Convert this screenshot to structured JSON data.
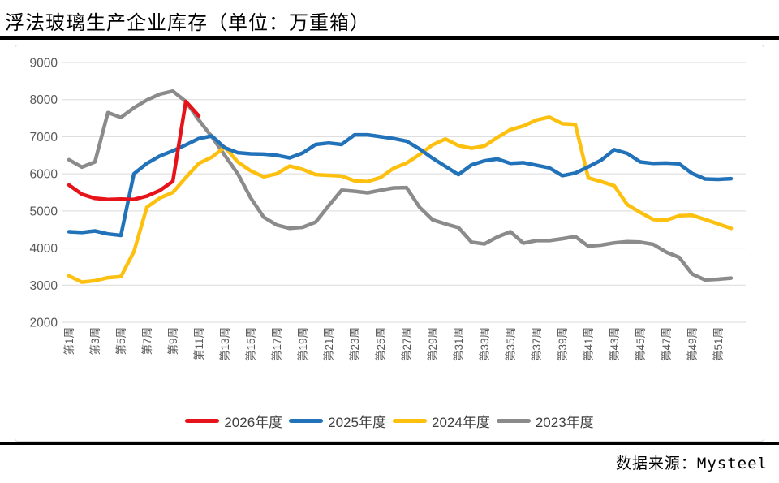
{
  "title": "浮法玻璃生产企业库存（单位：万重箱）",
  "source": "数据来源：Mysteel",
  "colors": {
    "red": "#e7131a",
    "blue": "#2172b8",
    "yellow": "#fdc00f",
    "gray": "#8b8b8b",
    "grid": "#dadada",
    "axis_text": "#595959",
    "legend_text": "#3f3f3f"
  },
  "chart_data": {
    "type": "line",
    "title": "浮法玻璃生产企业库存（单位：万重箱）",
    "xlabel": "",
    "ylabel": "",
    "ylim": [
      2000,
      9000
    ],
    "y_ticks": [
      2000,
      3000,
      4000,
      5000,
      6000,
      7000,
      8000,
      9000
    ],
    "x_weeks": 52,
    "x_tick_labels": [
      "第1周",
      "第3周",
      "第5周",
      "第7周",
      "第9周",
      "第11周",
      "第13周",
      "第15周",
      "第17周",
      "第19周",
      "第21周",
      "第23周",
      "第25周",
      "第27周",
      "第29周",
      "第31周",
      "第33周",
      "第35周",
      "第37周",
      "第39周",
      "第41周",
      "第43周",
      "第45周",
      "第47周",
      "第49周",
      "第51周"
    ],
    "grid": true,
    "legend_position": "bottom",
    "series": [
      {
        "name": "2026年度",
        "color": "#e7131a",
        "values": [
          5700,
          5450,
          5340,
          5310,
          5320,
          5310,
          5400,
          5550,
          5800,
          7950,
          7560
        ]
      },
      {
        "name": "2025年度",
        "color": "#2172b8",
        "values": [
          4440,
          4420,
          4460,
          4380,
          4340,
          6000,
          6280,
          6480,
          6620,
          6780,
          6950,
          7020,
          6700,
          6570,
          6540,
          6530,
          6500,
          6430,
          6560,
          6790,
          6830,
          6790,
          7050,
          7050,
          7000,
          6950,
          6880,
          6670,
          6420,
          6200,
          5980,
          6240,
          6350,
          6400,
          6280,
          6300,
          6230,
          6160,
          5950,
          6020,
          6190,
          6370,
          6650,
          6550,
          6320,
          6280,
          6290,
          6270,
          6010,
          5860,
          5850,
          5870
        ]
      },
      {
        "name": "2024年度",
        "color": "#fdc00f",
        "values": [
          3250,
          3080,
          3120,
          3200,
          3230,
          3900,
          5100,
          5350,
          5500,
          5900,
          6280,
          6450,
          6720,
          6320,
          6080,
          5920,
          6000,
          6210,
          6120,
          5980,
          5960,
          5940,
          5810,
          5790,
          5900,
          6150,
          6290,
          6520,
          6780,
          6940,
          6760,
          6690,
          6750,
          6980,
          7190,
          7290,
          7450,
          7530,
          7350,
          7330,
          5890,
          5790,
          5680,
          5170,
          4960,
          4770,
          4750,
          4870,
          4880,
          4770,
          4650,
          4530
        ]
      },
      {
        "name": "2023年度",
        "color": "#8b8b8b",
        "values": [
          6380,
          6180,
          6320,
          7650,
          7520,
          7780,
          7990,
          8150,
          8230,
          7950,
          7450,
          7000,
          6500,
          6000,
          5350,
          4830,
          4620,
          4530,
          4560,
          4700,
          5140,
          5560,
          5530,
          5490,
          5560,
          5620,
          5630,
          5100,
          4760,
          4650,
          4550,
          4160,
          4110,
          4300,
          4440,
          4130,
          4200,
          4200,
          4250,
          4310,
          4050,
          4080,
          4140,
          4170,
          4160,
          4100,
          3890,
          3750,
          3300,
          3140,
          3160,
          3190
        ]
      }
    ]
  }
}
